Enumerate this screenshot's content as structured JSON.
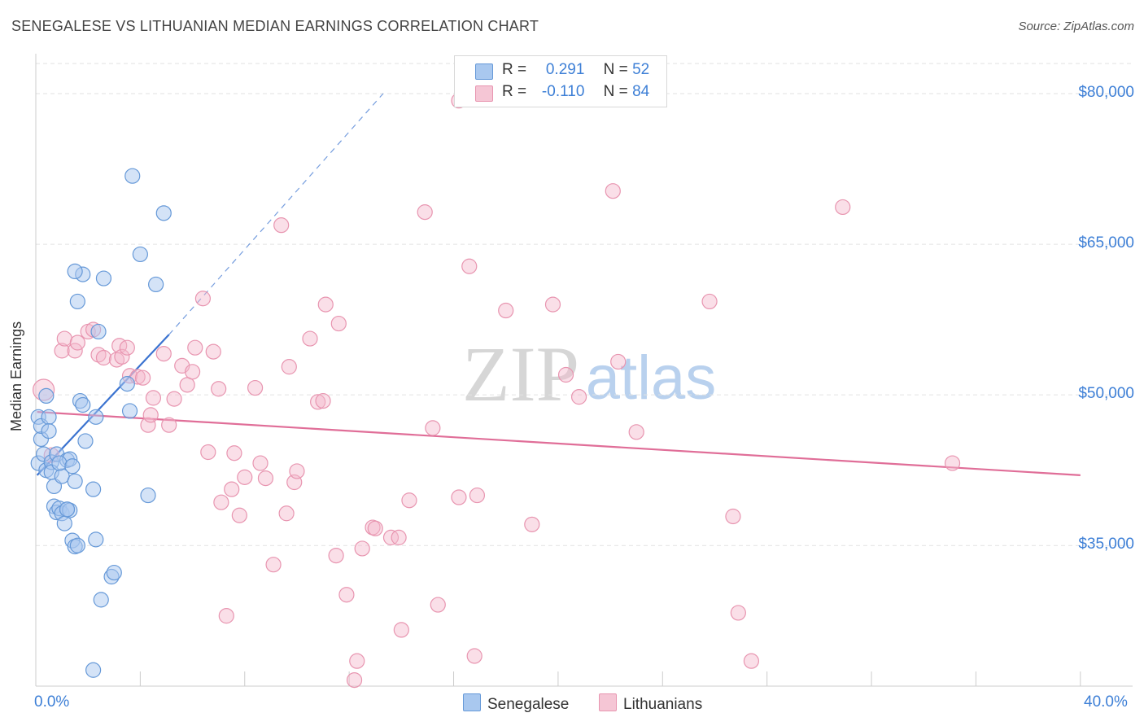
{
  "header": {
    "title": "SENEGALESE VS LITHUANIAN MEDIAN EARNINGS CORRELATION CHART",
    "source": "Source: ZipAtlas.com"
  },
  "watermark": {
    "zip": "ZIP",
    "atlas": "atlas"
  },
  "legend_top": {
    "rows": [
      {
        "r_label": "R =",
        "r_value": "0.291",
        "n_label": "N =",
        "n_value": "52"
      },
      {
        "r_label": "R =",
        "r_value": "-0.110",
        "n_label": "N =",
        "n_value": "84"
      }
    ]
  },
  "legend_bottom": {
    "items": [
      "Senegalese",
      "Lithuanians"
    ]
  },
  "colors": {
    "blue_fill": "#a9c8ef",
    "blue_stroke": "#6699d8",
    "blue_line": "#3b73d0",
    "pink_fill": "#f5b8cb",
    "pink_stroke": "#e895b0",
    "pink_line": "#e06e98",
    "grid": "#e2e2e2",
    "tick_text": "#3d7fd6"
  },
  "chart_data": {
    "type": "scatter",
    "title": "SENEGALESE VS LITHUANIAN MEDIAN EARNINGS CORRELATION CHART",
    "xlabel": "",
    "ylabel": "Median Earnings",
    "x_tick_labels": [
      "0.0%",
      "40.0%"
    ],
    "y_tick_labels": [
      "$35,000",
      "$50,000",
      "$65,000",
      "$80,000"
    ],
    "y_ticks": [
      35000,
      50000,
      65000,
      80000
    ],
    "xlim": [
      0,
      42
    ],
    "ylim": [
      21000,
      83000
    ],
    "series": [
      {
        "name": "Senegalese",
        "color": "#a9c8ef",
        "R": 0.291,
        "N": 52,
        "trend": {
          "x_start": 0.05,
          "y_start": 42000,
          "x_end": 5.1,
          "y_end": 56000,
          "dash_to_x": 13.3,
          "dash_to_y": 80000
        },
        "points": [
          [
            0.1,
            43200
          ],
          [
            0.2,
            45600
          ],
          [
            0.1,
            47800
          ],
          [
            0.2,
            46900
          ],
          [
            0.3,
            44100
          ],
          [
            0.4,
            42500
          ],
          [
            0.4,
            49900
          ],
          [
            0.5,
            47800
          ],
          [
            0.5,
            46400
          ],
          [
            0.6,
            43300
          ],
          [
            0.6,
            42300
          ],
          [
            0.7,
            40900
          ],
          [
            0.7,
            38900
          ],
          [
            0.8,
            38300
          ],
          [
            0.9,
            38700
          ],
          [
            1.0,
            38200
          ],
          [
            1.1,
            37200
          ],
          [
            1.2,
            38600
          ],
          [
            1.3,
            38500
          ],
          [
            1.4,
            35500
          ],
          [
            1.5,
            34900
          ],
          [
            1.6,
            35000
          ],
          [
            0.8,
            44100
          ],
          [
            1.0,
            41900
          ],
          [
            1.2,
            43500
          ],
          [
            1.3,
            43600
          ],
          [
            1.5,
            41400
          ],
          [
            1.7,
            49400
          ],
          [
            1.8,
            49000
          ],
          [
            1.9,
            45400
          ],
          [
            2.2,
            40600
          ],
          [
            2.3,
            35600
          ],
          [
            2.3,
            47800
          ],
          [
            2.4,
            56300
          ],
          [
            2.5,
            29600
          ],
          [
            2.6,
            61600
          ],
          [
            2.9,
            31900
          ],
          [
            3.0,
            32300
          ],
          [
            1.8,
            62000
          ],
          [
            1.6,
            59300
          ],
          [
            1.5,
            62300
          ],
          [
            2.2,
            22600
          ],
          [
            3.5,
            51100
          ],
          [
            3.6,
            48400
          ],
          [
            3.7,
            71800
          ],
          [
            4.0,
            64000
          ],
          [
            4.3,
            40000
          ],
          [
            4.9,
            68100
          ],
          [
            4.6,
            61000
          ],
          [
            1.2,
            38600
          ],
          [
            0.9,
            43200
          ],
          [
            1.4,
            42900
          ]
        ]
      },
      {
        "name": "Lithuanians",
        "color": "#f5b8cb",
        "R": -0.11,
        "N": 84,
        "trend": {
          "x_start": 0.05,
          "y_start": 48300,
          "x_end": 40.0,
          "y_end": 42000
        },
        "points": [
          [
            0.3,
            50500
          ],
          [
            0.6,
            44000
          ],
          [
            1.0,
            54400
          ],
          [
            1.1,
            55600
          ],
          [
            1.5,
            54400
          ],
          [
            1.6,
            55200
          ],
          [
            2.0,
            56300
          ],
          [
            2.2,
            56500
          ],
          [
            2.4,
            54000
          ],
          [
            2.6,
            53700
          ],
          [
            3.1,
            53500
          ],
          [
            3.2,
            54900
          ],
          [
            3.3,
            53800
          ],
          [
            3.5,
            54700
          ],
          [
            3.6,
            51900
          ],
          [
            3.9,
            51800
          ],
          [
            4.1,
            51700
          ],
          [
            4.3,
            47000
          ],
          [
            4.4,
            48000
          ],
          [
            4.5,
            49700
          ],
          [
            4.9,
            54100
          ],
          [
            5.1,
            47000
          ],
          [
            5.3,
            49600
          ],
          [
            5.6,
            52900
          ],
          [
            5.8,
            51000
          ],
          [
            6.0,
            52300
          ],
          [
            6.1,
            54700
          ],
          [
            6.4,
            59600
          ],
          [
            6.6,
            44300
          ],
          [
            6.8,
            54300
          ],
          [
            7.0,
            50600
          ],
          [
            7.1,
            39300
          ],
          [
            7.3,
            28000
          ],
          [
            7.5,
            40600
          ],
          [
            7.6,
            44200
          ],
          [
            7.8,
            38000
          ],
          [
            8.0,
            41800
          ],
          [
            8.4,
            50700
          ],
          [
            8.6,
            43200
          ],
          [
            8.8,
            41700
          ],
          [
            9.1,
            33100
          ],
          [
            9.4,
            66900
          ],
          [
            9.6,
            38200
          ],
          [
            9.7,
            52800
          ],
          [
            9.9,
            41300
          ],
          [
            10.0,
            42400
          ],
          [
            10.5,
            55600
          ],
          [
            10.8,
            49300
          ],
          [
            11.0,
            49400
          ],
          [
            11.1,
            59000
          ],
          [
            11.5,
            34000
          ],
          [
            11.6,
            57100
          ],
          [
            11.9,
            30100
          ],
          [
            12.2,
            21600
          ],
          [
            12.3,
            23500
          ],
          [
            12.5,
            34700
          ],
          [
            12.9,
            36800
          ],
          [
            13.0,
            36700
          ],
          [
            13.6,
            35800
          ],
          [
            13.9,
            35800
          ],
          [
            14.0,
            26600
          ],
          [
            14.3,
            39500
          ],
          [
            14.9,
            68200
          ],
          [
            15.2,
            46700
          ],
          [
            15.4,
            29100
          ],
          [
            16.2,
            39800
          ],
          [
            16.2,
            79300
          ],
          [
            16.6,
            62800
          ],
          [
            16.8,
            24000
          ],
          [
            16.9,
            40000
          ],
          [
            18.0,
            58400
          ],
          [
            19.0,
            37100
          ],
          [
            19.8,
            59000
          ],
          [
            20.3,
            52000
          ],
          [
            20.8,
            49800
          ],
          [
            22.1,
            70300
          ],
          [
            22.3,
            53300
          ],
          [
            23.0,
            46300
          ],
          [
            25.8,
            59300
          ],
          [
            26.7,
            37900
          ],
          [
            26.9,
            28300
          ],
          [
            27.4,
            23500
          ],
          [
            30.9,
            68700
          ],
          [
            35.1,
            43200
          ]
        ]
      }
    ]
  }
}
